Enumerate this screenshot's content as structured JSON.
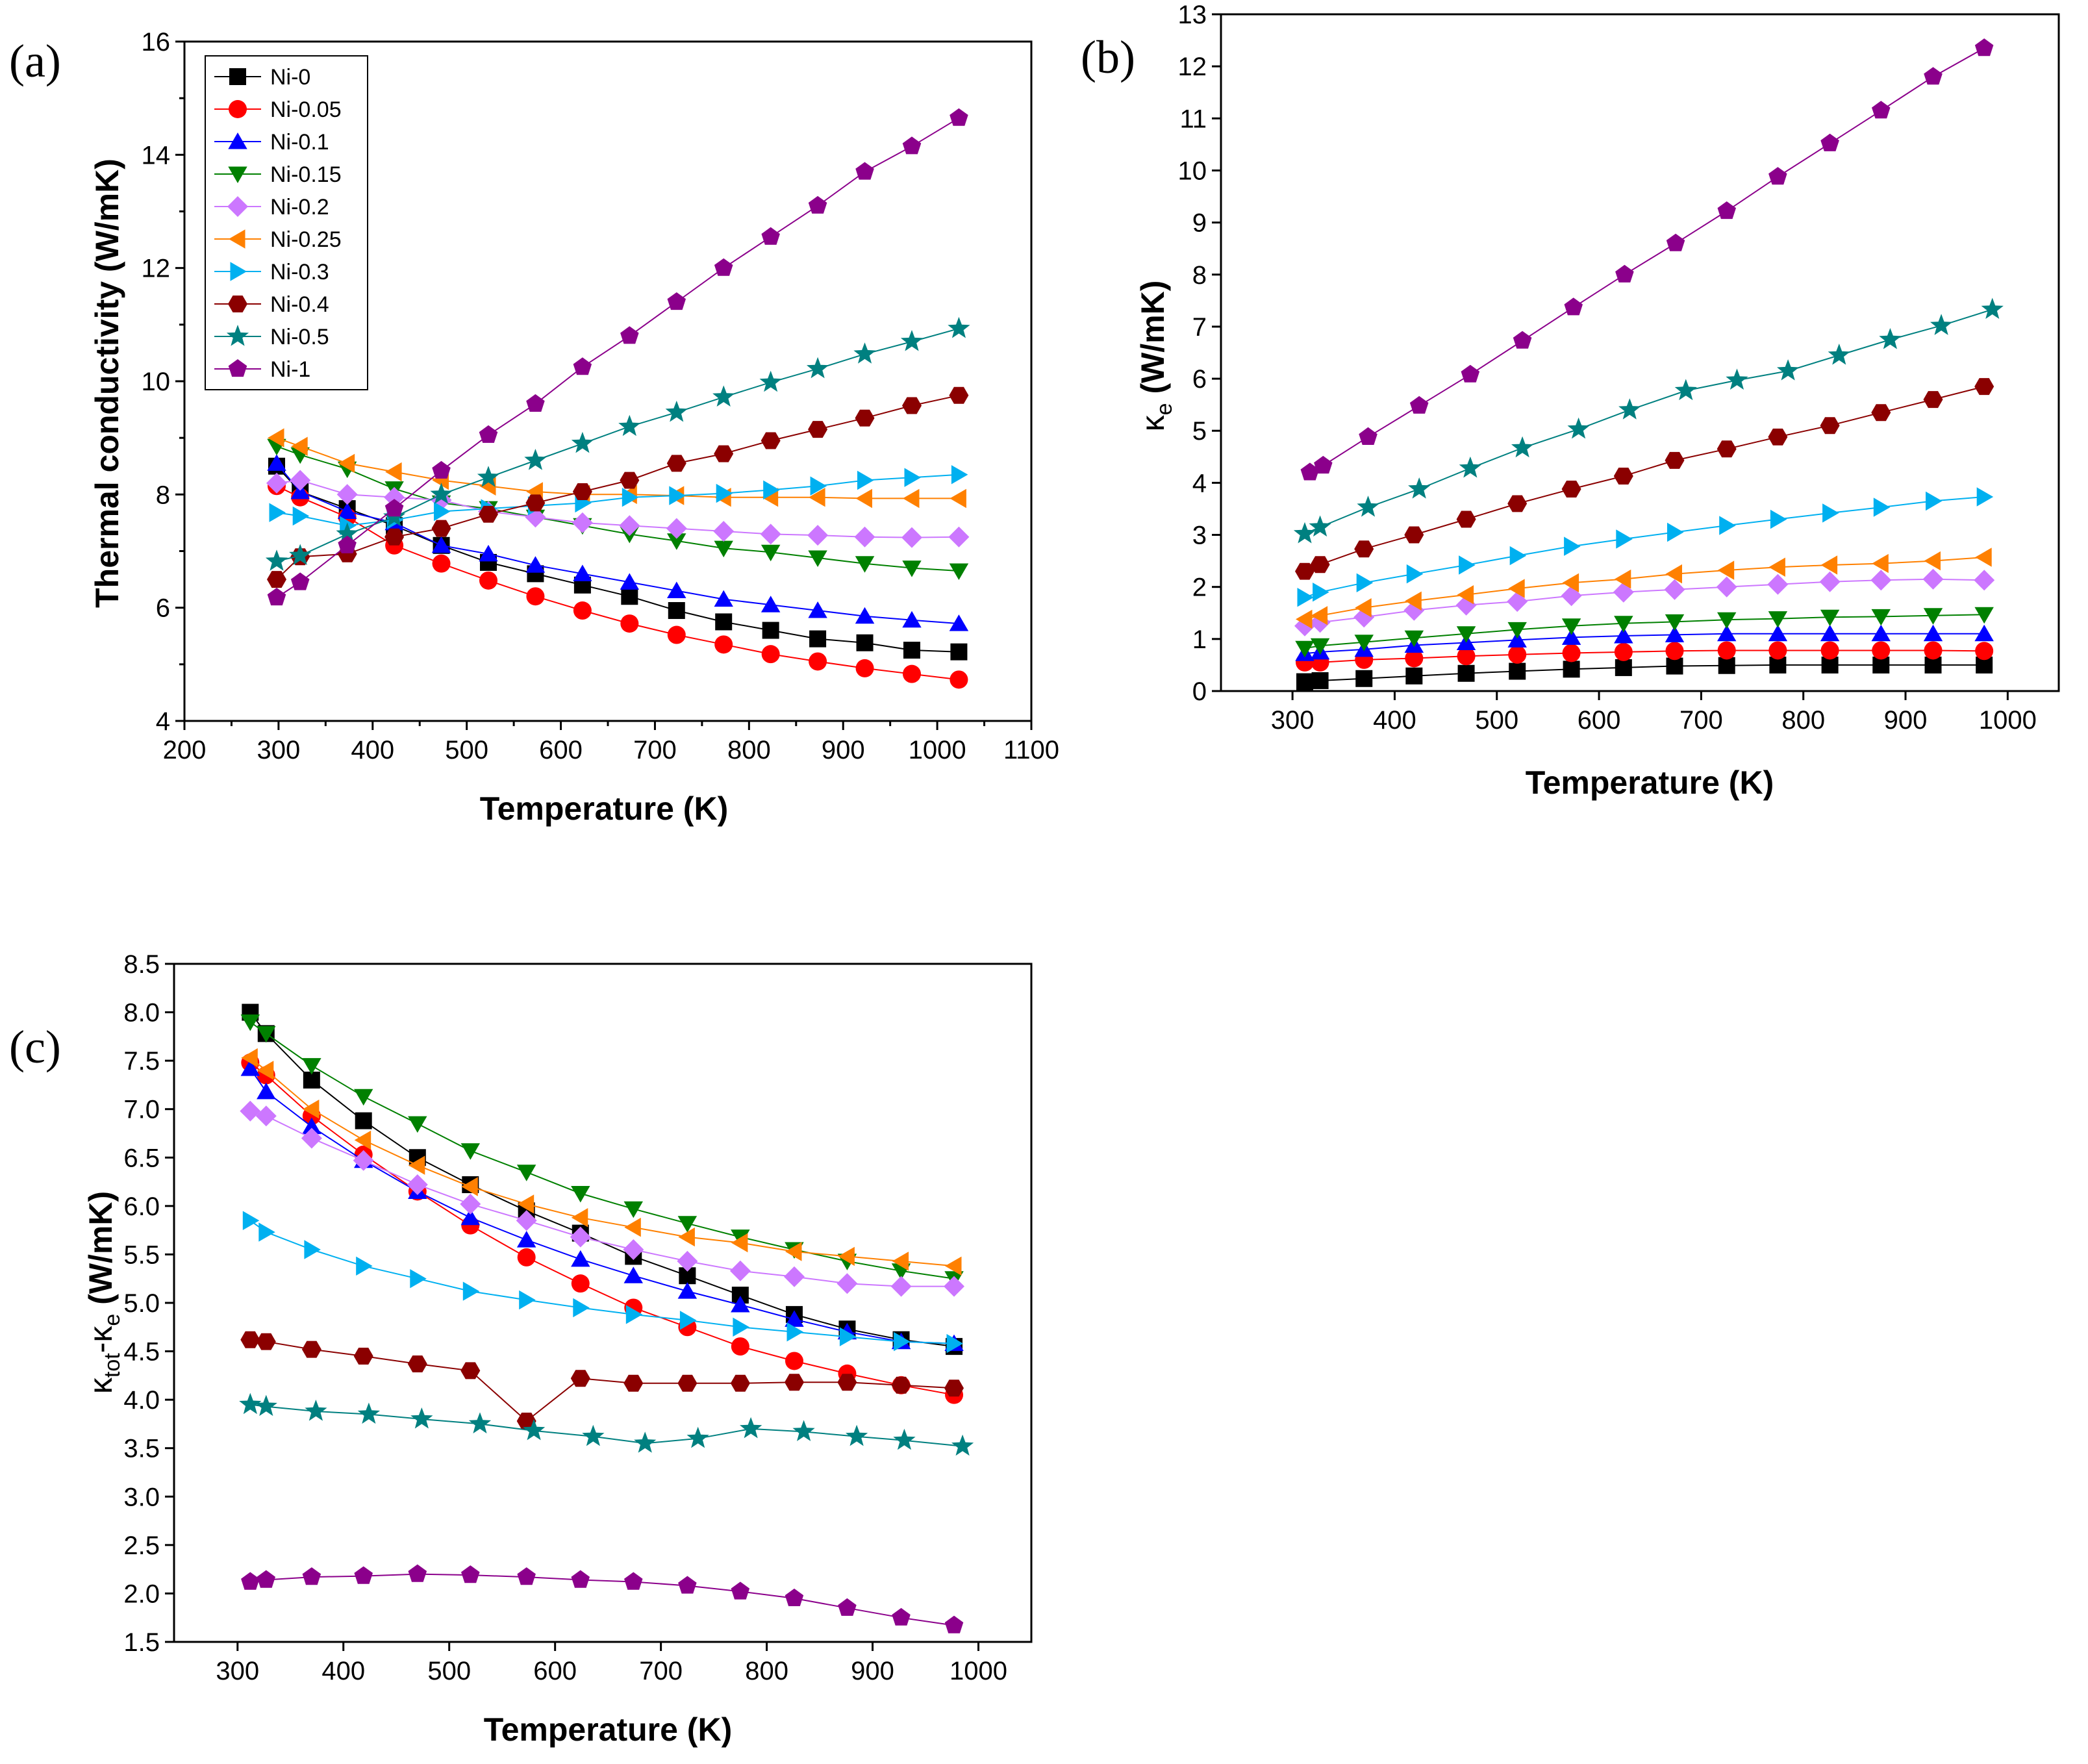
{
  "panels": {
    "a": {
      "label": "(a)",
      "xlabel": "Temperature (K)",
      "ylabel": "Thermal conductivity (W/mK)"
    },
    "b": {
      "label": "(b)",
      "xlabel": "Temperature (K)",
      "ylabel_symbol": "κ",
      "ylabel_sub": "e",
      "ylabel_unit": " (W/mK)"
    },
    "c": {
      "label": "(c)",
      "xlabel": "Temperature (K)",
      "ylabel_symbol": "κ",
      "ylabel_sub1": "tot",
      "ylabel_minus": "-",
      "ylabel_sub2": "e",
      "ylabel_unit": " (W/mK)"
    }
  },
  "series_styles": [
    {
      "name": "Ni-0",
      "color": "#000000",
      "marker": "square"
    },
    {
      "name": "Ni-0.05",
      "color": "#ff0000",
      "marker": "circle"
    },
    {
      "name": "Ni-0.1",
      "color": "#0000ff",
      "marker": "triangle-up"
    },
    {
      "name": "Ni-0.15",
      "color": "#008000",
      "marker": "triangle-down"
    },
    {
      "name": "Ni-0.2",
      "color": "#cc77ff",
      "marker": "diamond"
    },
    {
      "name": "Ni-0.25",
      "color": "#ff8000",
      "marker": "triangle-left"
    },
    {
      "name": "Ni-0.3",
      "color": "#00b0f0",
      "marker": "triangle-right"
    },
    {
      "name": "Ni-0.4",
      "color": "#8b0000",
      "marker": "hexagon"
    },
    {
      "name": "Ni-0.5",
      "color": "#008080",
      "marker": "star"
    },
    {
      "name": "Ni-1",
      "color": "#8b008b",
      "marker": "pentagon"
    }
  ],
  "chart_data": [
    {
      "id": "a",
      "type": "line",
      "title": "",
      "xlabel": "Temperature (K)",
      "ylabel": "Thermal conductivity (W/mK)",
      "xlim": [
        200,
        1100
      ],
      "ylim": [
        4,
        16
      ],
      "xticks": [
        "200",
        "300",
        "400",
        "500",
        "600",
        "700",
        "800",
        "900",
        "1000",
        "1100"
      ],
      "yticks": [
        "4",
        "6",
        "8",
        "10",
        "12",
        "14",
        "16"
      ],
      "legend": "top-left",
      "x": [
        298,
        323,
        373,
        423,
        473,
        523,
        573,
        623,
        673,
        723,
        773,
        823,
        873,
        923,
        973,
        1023
      ],
      "series": [
        {
          "name": "Ni-0",
          "values": [
            8.5,
            8.05,
            7.75,
            7.45,
            7.1,
            6.8,
            6.6,
            6.4,
            6.2,
            5.95,
            5.75,
            5.6,
            5.45,
            5.38,
            5.25,
            5.22
          ]
        },
        {
          "name": "Ni-0.05",
          "values": [
            8.15,
            7.95,
            7.6,
            7.1,
            6.78,
            6.48,
            6.2,
            5.95,
            5.72,
            5.52,
            5.35,
            5.18,
            5.05,
            4.93,
            4.83,
            4.73
          ]
        },
        {
          "name": "Ni-0.1",
          "values": [
            8.55,
            8.05,
            7.7,
            7.5,
            7.1,
            6.95,
            6.75,
            6.6,
            6.45,
            6.3,
            6.15,
            6.05,
            5.95,
            5.85,
            5.78,
            5.72
          ]
        },
        {
          "name": "Ni-0.15",
          "values": [
            8.85,
            8.7,
            8.45,
            8.1,
            7.85,
            7.75,
            7.6,
            7.45,
            7.3,
            7.18,
            7.05,
            6.98,
            6.88,
            6.78,
            6.7,
            6.65
          ]
        },
        {
          "name": "Ni-0.2",
          "values": [
            8.2,
            8.25,
            8.0,
            7.95,
            7.9,
            7.7,
            7.6,
            7.5,
            7.45,
            7.4,
            7.35,
            7.3,
            7.28,
            7.25,
            7.24,
            7.25
          ]
        },
        {
          "name": "Ni-0.25",
          "values": [
            9.0,
            8.85,
            8.55,
            8.4,
            8.25,
            8.15,
            8.05,
            8.0,
            8.0,
            7.98,
            7.95,
            7.95,
            7.95,
            7.93,
            7.93,
            7.93
          ]
        },
        {
          "name": "Ni-0.3",
          "values": [
            7.68,
            7.62,
            7.45,
            7.55,
            7.7,
            7.75,
            7.8,
            7.85,
            7.95,
            7.98,
            8.02,
            8.08,
            8.15,
            8.25,
            8.3,
            8.35
          ]
        },
        {
          "name": "Ni-0.4",
          "values": [
            6.5,
            6.9,
            6.95,
            7.25,
            7.4,
            7.65,
            7.85,
            8.05,
            8.25,
            8.55,
            8.72,
            8.95,
            9.15,
            9.35,
            9.57,
            9.75
          ]
        },
        {
          "name": "Ni-0.5",
          "values": [
            6.82,
            6.92,
            7.3,
            7.6,
            8.0,
            8.3,
            8.6,
            8.9,
            9.2,
            9.45,
            9.72,
            9.98,
            10.22,
            10.48,
            10.7,
            10.93
          ]
        },
        {
          "name": "Ni-1",
          "values": [
            6.18,
            6.45,
            7.1,
            7.75,
            8.42,
            9.05,
            9.6,
            10.25,
            10.8,
            11.4,
            12.0,
            12.55,
            13.1,
            13.7,
            14.15,
            14.65
          ]
        }
      ]
    },
    {
      "id": "b",
      "type": "line",
      "title": "",
      "xlabel": "Temperature (K)",
      "ylabel": "κe (W/mK)",
      "xlim": [
        230,
        1050
      ],
      "ylim": [
        0,
        13
      ],
      "xticks": [
        "300",
        "400",
        "500",
        "600",
        "700",
        "800",
        "900",
        "1000"
      ],
      "yticks": [
        "0",
        "1",
        "2",
        "3",
        "4",
        "5",
        "6",
        "7",
        "8",
        "9",
        "10",
        "11",
        "12",
        "13"
      ],
      "series": [
        {
          "name": "Ni-0",
          "x": [
            312,
            327,
            370,
            419,
            470,
            520,
            573,
            624,
            674,
            725,
            775,
            826,
            876,
            927,
            977
          ],
          "values": [
            0.18,
            0.2,
            0.24,
            0.29,
            0.34,
            0.38,
            0.42,
            0.45,
            0.48,
            0.49,
            0.5,
            0.5,
            0.5,
            0.5,
            0.5
          ]
        },
        {
          "name": "Ni-0.05",
          "x": [
            312,
            327,
            370,
            419,
            470,
            520,
            573,
            624,
            674,
            725,
            775,
            826,
            876,
            927,
            977
          ],
          "values": [
            0.55,
            0.55,
            0.6,
            0.63,
            0.67,
            0.7,
            0.73,
            0.75,
            0.77,
            0.78,
            0.78,
            0.78,
            0.78,
            0.78,
            0.77
          ]
        },
        {
          "name": "Ni-0.1",
          "x": [
            312,
            327,
            370,
            419,
            470,
            520,
            573,
            624,
            674,
            725,
            775,
            826,
            876,
            927,
            977
          ],
          "values": [
            0.72,
            0.75,
            0.8,
            0.88,
            0.93,
            0.98,
            1.03,
            1.06,
            1.08,
            1.1,
            1.1,
            1.1,
            1.1,
            1.1,
            1.1
          ]
        },
        {
          "name": "Ni-0.15",
          "x": [
            312,
            327,
            370,
            419,
            470,
            520,
            573,
            624,
            674,
            725,
            775,
            826,
            876,
            927,
            977
          ],
          "values": [
            0.82,
            0.87,
            0.94,
            1.02,
            1.1,
            1.18,
            1.25,
            1.3,
            1.33,
            1.37,
            1.39,
            1.42,
            1.43,
            1.45,
            1.47
          ]
        },
        {
          "name": "Ni-0.2",
          "x": [
            312,
            327,
            370,
            419,
            470,
            520,
            573,
            624,
            674,
            725,
            775,
            826,
            876,
            927,
            977
          ],
          "values": [
            1.25,
            1.32,
            1.42,
            1.55,
            1.65,
            1.72,
            1.83,
            1.9,
            1.95,
            2.0,
            2.05,
            2.1,
            2.13,
            2.15,
            2.13
          ]
        },
        {
          "name": "Ni-0.25",
          "x": [
            312,
            327,
            370,
            419,
            470,
            520,
            573,
            624,
            674,
            725,
            775,
            826,
            876,
            927,
            977
          ],
          "values": [
            1.38,
            1.45,
            1.6,
            1.73,
            1.85,
            1.97,
            2.08,
            2.15,
            2.25,
            2.32,
            2.38,
            2.42,
            2.45,
            2.5,
            2.57
          ]
        },
        {
          "name": "Ni-0.3",
          "x": [
            312,
            327,
            370,
            419,
            470,
            520,
            573,
            624,
            674,
            725,
            775,
            826,
            876,
            927,
            977
          ],
          "values": [
            1.8,
            1.9,
            2.08,
            2.25,
            2.42,
            2.6,
            2.78,
            2.92,
            3.05,
            3.18,
            3.3,
            3.42,
            3.53,
            3.65,
            3.73
          ]
        },
        {
          "name": "Ni-0.4",
          "x": [
            312,
            327,
            370,
            419,
            470,
            520,
            573,
            624,
            674,
            725,
            775,
            826,
            876,
            927,
            977
          ],
          "values": [
            2.3,
            2.43,
            2.73,
            3.0,
            3.3,
            3.6,
            3.88,
            4.13,
            4.43,
            4.65,
            4.88,
            5.1,
            5.35,
            5.6,
            5.85
          ]
        },
        {
          "name": "Ni-0.5",
          "x": [
            312,
            327,
            374,
            424,
            474,
            525,
            580,
            630,
            685,
            735,
            785,
            835,
            885,
            935,
            985
          ],
          "values": [
            3.02,
            3.15,
            3.53,
            3.88,
            4.28,
            4.67,
            5.03,
            5.4,
            5.77,
            5.97,
            6.15,
            6.45,
            6.75,
            7.02,
            7.33
          ]
        },
        {
          "name": "Ni-1",
          "x": [
            317,
            330,
            374,
            424,
            474,
            525,
            575,
            625,
            675,
            725,
            775,
            826,
            876,
            927,
            977
          ],
          "values": [
            4.2,
            4.33,
            4.88,
            5.48,
            6.08,
            6.73,
            7.37,
            8.0,
            8.6,
            9.22,
            9.88,
            10.52,
            11.15,
            11.8,
            12.35
          ]
        }
      ]
    },
    {
      "id": "c",
      "type": "line",
      "title": "",
      "xlabel": "Temperature (K)",
      "ylabel": "κtot-κe (W/mK)",
      "xlim": [
        240,
        1050
      ],
      "ylim": [
        1.5,
        8.5
      ],
      "xticks": [
        "300",
        "400",
        "500",
        "600",
        "700",
        "800",
        "900",
        "1000"
      ],
      "yticks": [
        "1.5",
        "2.0",
        "2.5",
        "3.0",
        "3.5",
        "4.0",
        "4.5",
        "5.0",
        "5.5",
        "6.0",
        "6.5",
        "7.0",
        "7.5",
        "8.0",
        "8.5"
      ],
      "series": [
        {
          "name": "Ni-0",
          "x": [
            312,
            327,
            370,
            419,
            470,
            520,
            573,
            624,
            674,
            725,
            775,
            826,
            876,
            927,
            977
          ],
          "values": [
            8.0,
            7.78,
            7.3,
            6.88,
            6.5,
            6.22,
            5.95,
            5.72,
            5.48,
            5.28,
            5.08,
            4.88,
            4.73,
            4.62,
            4.55
          ]
        },
        {
          "name": "Ni-0.05",
          "x": [
            312,
            327,
            370,
            419,
            470,
            520,
            573,
            624,
            674,
            725,
            775,
            826,
            876,
            927,
            977
          ],
          "values": [
            7.48,
            7.35,
            6.93,
            6.53,
            6.15,
            5.8,
            5.47,
            5.2,
            4.95,
            4.75,
            4.55,
            4.4,
            4.27,
            4.15,
            4.05
          ]
        },
        {
          "name": "Ni-0.1",
          "x": [
            312,
            327,
            370,
            419,
            470,
            520,
            573,
            624,
            674,
            725,
            775,
            826,
            876,
            927,
            977
          ],
          "values": [
            7.42,
            7.18,
            6.82,
            6.47,
            6.15,
            5.88,
            5.65,
            5.45,
            5.28,
            5.12,
            4.98,
            4.83,
            4.7,
            4.6,
            4.58
          ]
        },
        {
          "name": "Ni-0.15",
          "x": [
            312,
            327,
            370,
            419,
            470,
            520,
            573,
            624,
            674,
            725,
            775,
            826,
            876,
            927,
            977
          ],
          "values": [
            7.9,
            7.78,
            7.45,
            7.13,
            6.85,
            6.57,
            6.35,
            6.13,
            5.97,
            5.82,
            5.68,
            5.55,
            5.43,
            5.33,
            5.25
          ]
        },
        {
          "name": "Ni-0.2",
          "x": [
            312,
            327,
            370,
            419,
            470,
            520,
            573,
            624,
            674,
            725,
            775,
            826,
            876,
            927,
            977
          ],
          "values": [
            6.98,
            6.93,
            6.7,
            6.47,
            6.22,
            6.02,
            5.85,
            5.68,
            5.55,
            5.43,
            5.33,
            5.27,
            5.2,
            5.17,
            5.17
          ]
        },
        {
          "name": "Ni-0.25",
          "x": [
            312,
            327,
            370,
            419,
            470,
            520,
            573,
            624,
            674,
            725,
            775,
            826,
            876,
            927,
            977
          ],
          "values": [
            7.53,
            7.4,
            7.0,
            6.68,
            6.42,
            6.2,
            6.02,
            5.88,
            5.78,
            5.68,
            5.62,
            5.53,
            5.48,
            5.43,
            5.38
          ]
        },
        {
          "name": "Ni-0.3",
          "x": [
            312,
            327,
            370,
            419,
            470,
            520,
            573,
            624,
            674,
            725,
            775,
            826,
            876,
            927,
            977
          ],
          "values": [
            5.85,
            5.73,
            5.55,
            5.38,
            5.25,
            5.12,
            5.03,
            4.95,
            4.88,
            4.82,
            4.75,
            4.7,
            4.65,
            4.6,
            4.58
          ]
        },
        {
          "name": "Ni-0.4",
          "x": [
            312,
            327,
            370,
            419,
            470,
            520,
            573,
            624,
            674,
            725,
            775,
            826,
            876,
            927,
            977
          ],
          "values": [
            4.62,
            4.6,
            4.52,
            4.45,
            4.37,
            4.3,
            3.78,
            4.22,
            4.17,
            4.17,
            4.17,
            4.18,
            4.18,
            4.15,
            4.12
          ]
        },
        {
          "name": "Ni-0.5",
          "x": [
            312,
            327,
            374,
            424,
            474,
            529,
            580,
            636,
            685,
            735,
            785,
            835,
            885,
            930,
            985
          ],
          "values": [
            3.95,
            3.93,
            3.88,
            3.85,
            3.8,
            3.75,
            3.68,
            3.62,
            3.55,
            3.6,
            3.7,
            3.67,
            3.62,
            3.58,
            3.52
          ]
        },
        {
          "name": "Ni-1",
          "x": [
            312,
            327,
            370,
            419,
            470,
            520,
            573,
            624,
            674,
            725,
            775,
            826,
            876,
            927,
            977
          ],
          "values": [
            2.12,
            2.14,
            2.17,
            2.18,
            2.2,
            2.19,
            2.17,
            2.14,
            2.12,
            2.08,
            2.02,
            1.95,
            1.85,
            1.75,
            1.67
          ]
        }
      ]
    }
  ]
}
